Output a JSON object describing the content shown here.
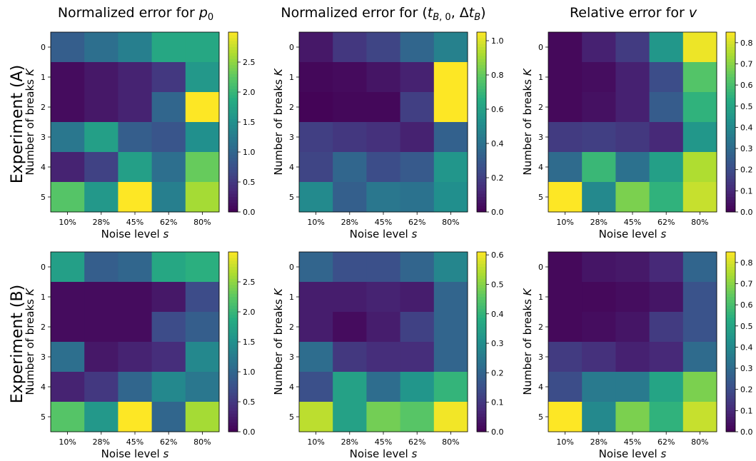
{
  "figure": {
    "row_labels": [
      "Experiment (A)",
      "Experiment (B)"
    ]
  },
  "chart_data": [
    {
      "type": "heatmap",
      "title": "Normalized error for p0",
      "xlabel": "Noise level s",
      "ylabel": "Number of breaks K",
      "x_categories": [
        "10%",
        "28%",
        "45%",
        "62%",
        "80%"
      ],
      "y_categories": [
        "0",
        "1",
        "2",
        "3",
        "4",
        "5"
      ],
      "values": [
        [
          0.9,
          1.1,
          1.3,
          1.8,
          1.8
        ],
        [
          0.1,
          0.2,
          0.3,
          0.5,
          1.6
        ],
        [
          0.1,
          0.2,
          0.3,
          1.0,
          3.0
        ],
        [
          1.2,
          1.7,
          0.9,
          0.8,
          1.5
        ],
        [
          0.3,
          0.6,
          1.7,
          1.1,
          2.3
        ],
        [
          2.2,
          1.6,
          3.0,
          1.3,
          2.6
        ]
      ],
      "colorbar": {
        "min": 0,
        "max": 3.0,
        "ticks": [
          0.0,
          0.5,
          1.0,
          1.5,
          2.0,
          2.5
        ],
        "tick_labels": [
          "0.0",
          "0.5",
          "1.0",
          "1.5",
          "2.0",
          "2.5"
        ]
      },
      "colormap": "viridis"
    },
    {
      "type": "heatmap",
      "title": "Normalized error for (tB,0, ΔtB)",
      "xlabel": "Noise level s",
      "ylabel": "Number of breaks K",
      "x_categories": [
        "10%",
        "28%",
        "45%",
        "62%",
        "80%"
      ],
      "y_categories": [
        "0",
        "1",
        "2",
        "3",
        "4",
        "5"
      ],
      "values": [
        [
          0.07,
          0.17,
          0.22,
          0.35,
          0.46
        ],
        [
          0.02,
          0.03,
          0.06,
          0.1,
          1.05
        ],
        [
          0.01,
          0.02,
          0.02,
          0.2,
          1.05
        ],
        [
          0.2,
          0.17,
          0.15,
          0.1,
          0.33
        ],
        [
          0.22,
          0.35,
          0.25,
          0.3,
          0.55
        ],
        [
          0.5,
          0.32,
          0.42,
          0.4,
          0.52
        ]
      ],
      "colorbar": {
        "min": 0,
        "max": 1.05,
        "ticks": [
          0.0,
          0.2,
          0.4,
          0.6,
          0.8,
          1.0
        ],
        "tick_labels": [
          "0.0",
          "0.2",
          "0.4",
          "0.6",
          "0.8",
          "1.0"
        ]
      },
      "colormap": "viridis"
    },
    {
      "type": "heatmap",
      "title": "Relative error for v",
      "xlabel": "Noise level s",
      "ylabel": "Number of breaks K",
      "x_categories": [
        "10%",
        "28%",
        "45%",
        "62%",
        "80%"
      ],
      "y_categories": [
        "0",
        "1",
        "2",
        "3",
        "4",
        "5"
      ],
      "values": [
        [
          0.02,
          0.08,
          0.15,
          0.45,
          0.83
        ],
        [
          0.02,
          0.03,
          0.08,
          0.2,
          0.62
        ],
        [
          0.02,
          0.04,
          0.08,
          0.25,
          0.55
        ],
        [
          0.15,
          0.16,
          0.14,
          0.1,
          0.45
        ],
        [
          0.3,
          0.57,
          0.32,
          0.48,
          0.75
        ],
        [
          0.85,
          0.4,
          0.68,
          0.55,
          0.78
        ]
      ],
      "colorbar": {
        "min": 0,
        "max": 0.85,
        "ticks": [
          0.0,
          0.1,
          0.2,
          0.3,
          0.4,
          0.5,
          0.6,
          0.7,
          0.8
        ],
        "tick_labels": [
          "0.0",
          "0.1",
          "0.2",
          "0.3",
          "0.4",
          "0.5",
          "0.6",
          "0.7",
          "0.8"
        ]
      },
      "colormap": "viridis"
    },
    {
      "type": "heatmap",
      "title": "",
      "xlabel": "Noise level s",
      "ylabel": "Number of breaks K",
      "x_categories": [
        "10%",
        "28%",
        "45%",
        "62%",
        "80%"
      ],
      "y_categories": [
        "0",
        "1",
        "2",
        "3",
        "4",
        "5"
      ],
      "values": [
        [
          1.7,
          0.9,
          1.0,
          1.8,
          1.9
        ],
        [
          0.1,
          0.1,
          0.1,
          0.2,
          0.7
        ],
        [
          0.1,
          0.1,
          0.1,
          0.7,
          0.9
        ],
        [
          1.1,
          0.2,
          0.3,
          0.4,
          1.4
        ],
        [
          0.3,
          0.5,
          1.0,
          1.4,
          1.2
        ],
        [
          2.2,
          1.6,
          3.0,
          1.0,
          2.6
        ]
      ],
      "colorbar": {
        "min": 0,
        "max": 3.0,
        "ticks": [
          0.0,
          0.5,
          1.0,
          1.5,
          2.0,
          2.5
        ],
        "tick_labels": [
          "0.0",
          "0.5",
          "1.0",
          "1.5",
          "2.0",
          "2.5"
        ]
      },
      "colormap": "viridis"
    },
    {
      "type": "heatmap",
      "title": "",
      "xlabel": "Noise level s",
      "ylabel": "Number of breaks K",
      "x_categories": [
        "10%",
        "28%",
        "45%",
        "62%",
        "80%"
      ],
      "y_categories": [
        "0",
        "1",
        "2",
        "3",
        "4",
        "5"
      ],
      "values": [
        [
          0.2,
          0.15,
          0.15,
          0.2,
          0.28
        ],
        [
          0.05,
          0.05,
          0.06,
          0.05,
          0.2
        ],
        [
          0.05,
          0.02,
          0.05,
          0.12,
          0.2
        ],
        [
          0.22,
          0.1,
          0.08,
          0.08,
          0.2
        ],
        [
          0.15,
          0.35,
          0.22,
          0.32,
          0.4
        ],
        [
          0.55,
          0.35,
          0.48,
          0.45,
          0.6
        ]
      ],
      "colorbar": {
        "min": 0,
        "max": 0.61,
        "ticks": [
          0.0,
          0.1,
          0.2,
          0.3,
          0.4,
          0.5,
          0.6
        ],
        "tick_labels": [
          "0.0",
          "0.1",
          "0.2",
          "0.3",
          "0.4",
          "0.5",
          "0.6"
        ]
      },
      "colormap": "viridis"
    },
    {
      "type": "heatmap",
      "title": "",
      "xlabel": "Noise level s",
      "ylabel": "Number of breaks K",
      "x_categories": [
        "10%",
        "28%",
        "45%",
        "62%",
        "80%"
      ],
      "y_categories": [
        "0",
        "1",
        "2",
        "3",
        "4",
        "5"
      ],
      "values": [
        [
          0.02,
          0.05,
          0.06,
          0.1,
          0.28
        ],
        [
          0.02,
          0.02,
          0.03,
          0.05,
          0.22
        ],
        [
          0.02,
          0.03,
          0.05,
          0.15,
          0.22
        ],
        [
          0.15,
          0.12,
          0.08,
          0.1,
          0.3
        ],
        [
          0.2,
          0.35,
          0.35,
          0.5,
          0.68
        ],
        [
          0.85,
          0.4,
          0.68,
          0.55,
          0.78
        ]
      ],
      "colorbar": {
        "min": 0,
        "max": 0.85,
        "ticks": [
          0.0,
          0.1,
          0.2,
          0.3,
          0.4,
          0.5,
          0.6,
          0.7,
          0.8
        ],
        "tick_labels": [
          "0.0",
          "0.1",
          "0.2",
          "0.3",
          "0.4",
          "0.5",
          "0.6",
          "0.7",
          "0.8"
        ]
      },
      "colormap": "viridis"
    }
  ]
}
